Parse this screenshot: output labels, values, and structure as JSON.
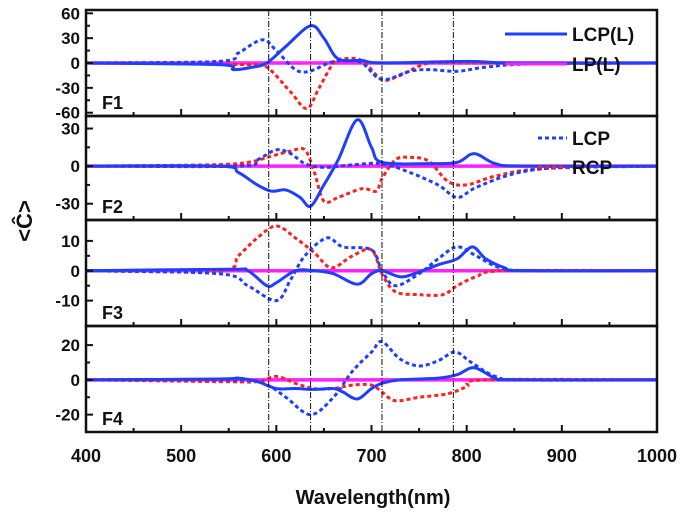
{
  "chart_data": {
    "type": "line",
    "xlabel": "Wavelength(nm)",
    "ylabel": "<Ĉ>",
    "xlim": [
      400,
      1000
    ],
    "xticks": [
      400,
      500,
      600,
      700,
      800,
      900,
      1000
    ],
    "grid": false,
    "reference_lines_x": [
      592,
      636,
      711,
      786
    ],
    "colors": {
      "LCP(L)": "#1f3fff",
      "LP(L)": "#ff1fff",
      "LCP": "#1f3fff",
      "RCP": "#ff2020"
    },
    "legend": [
      {
        "panel": 0,
        "placement": "top-right",
        "entries": [
          {
            "name": "LCP(L)",
            "style": "solid",
            "color": "#1f3fff"
          },
          {
            "name": "LP(L)",
            "style": "solid",
            "color": "#ff1fff"
          }
        ]
      },
      {
        "panel": 1,
        "placement": "top-right",
        "entries": [
          {
            "name": "LCP",
            "style": "dotted",
            "color": "#1f3fff"
          },
          {
            "name": "RCP",
            "style": "dotted",
            "color": "#ff2020"
          }
        ]
      }
    ],
    "panels": [
      {
        "label": "F1",
        "ylim": [
          -64,
          64
        ],
        "yticks": [
          60,
          30,
          0,
          -30,
          -60
        ],
        "series": [
          {
            "name": "LCP(L)",
            "points": [
              [
                400,
                0
              ],
              [
                540,
                -2
              ],
              [
                555,
                -8
              ],
              [
                575,
                -5
              ],
              [
                590,
                0
              ],
              [
                610,
                20
              ],
              [
                636,
                45
              ],
              [
                650,
                30
              ],
              [
                665,
                5
              ],
              [
                690,
                3
              ],
              [
                711,
                0
              ],
              [
                800,
                2
              ],
              [
                850,
                0
              ],
              [
                1000,
                0
              ]
            ]
          },
          {
            "name": "LCP",
            "points": [
              [
                400,
                0
              ],
              [
                540,
                2
              ],
              [
                560,
                12
              ],
              [
                585,
                28
              ],
              [
                600,
                15
              ],
              [
                620,
                -8
              ],
              [
                635,
                -10
              ],
              [
                655,
                0
              ],
              [
                670,
                3
              ],
              [
                690,
                0
              ],
              [
                711,
                -20
              ],
              [
                740,
                -10
              ],
              [
                760,
                -8
              ],
              [
                790,
                -10
              ],
              [
                820,
                -5
              ],
              [
                870,
                -1
              ],
              [
                1000,
                0
              ]
            ]
          },
          {
            "name": "RCP",
            "points": [
              [
                400,
                0
              ],
              [
                570,
                -2
              ],
              [
                590,
                -5
              ],
              [
                615,
                -35
              ],
              [
                632,
                -55
              ],
              [
                645,
                -30
              ],
              [
                660,
                0
              ],
              [
                670,
                5
              ],
              [
                690,
                3
              ],
              [
                711,
                -20
              ],
              [
                730,
                -15
              ],
              [
                760,
                0
              ],
              [
                800,
                0
              ],
              [
                1000,
                0
              ]
            ]
          },
          {
            "name": "LP(L)",
            "points": [
              [
                400,
                0
              ],
              [
                1000,
                0
              ]
            ]
          }
        ]
      },
      {
        "label": "F2",
        "ylim": [
          -43,
          40
        ],
        "yticks": [
          30,
          0,
          -30
        ],
        "series": [
          {
            "name": "LCP(L)",
            "points": [
              [
                400,
                0
              ],
              [
                540,
                0
              ],
              [
                560,
                -5
              ],
              [
                580,
                -15
              ],
              [
                595,
                -20
              ],
              [
                610,
                -19
              ],
              [
                625,
                -25
              ],
              [
                636,
                -32
              ],
              [
                650,
                -15
              ],
              [
                665,
                5
              ],
              [
                685,
                37
              ],
              [
                700,
                15
              ],
              [
                711,
                3
              ],
              [
                760,
                2
              ],
              [
                790,
                3
              ],
              [
                808,
                10
              ],
              [
                830,
                2
              ],
              [
                860,
                0
              ],
              [
                1000,
                0
              ]
            ]
          },
          {
            "name": "LCP",
            "points": [
              [
                400,
                0
              ],
              [
                560,
                0
              ],
              [
                580,
                5
              ],
              [
                600,
                13
              ],
              [
                615,
                10
              ],
              [
                630,
                2
              ],
              [
                650,
                -1
              ],
              [
                680,
                1
              ],
              [
                711,
                2
              ],
              [
                740,
                -5
              ],
              [
                770,
                -15
              ],
              [
                790,
                -25
              ],
              [
                810,
                -17
              ],
              [
                850,
                -6
              ],
              [
                900,
                -1
              ],
              [
                1000,
                0
              ]
            ]
          },
          {
            "name": "RCP",
            "points": [
              [
                400,
                0
              ],
              [
                530,
                1
              ],
              [
                570,
                3
              ],
              [
                595,
                8
              ],
              [
                615,
                12
              ],
              [
                630,
                13
              ],
              [
                640,
                -5
              ],
              [
                650,
                -28
              ],
              [
                665,
                -25
              ],
              [
                690,
                -18
              ],
              [
                705,
                -20
              ],
              [
                711,
                -10
              ],
              [
                725,
                5
              ],
              [
                740,
                7
              ],
              [
                760,
                4
              ],
              [
                780,
                -12
              ],
              [
                800,
                -15
              ],
              [
                830,
                -8
              ],
              [
                880,
                -2
              ],
              [
                1000,
                0
              ]
            ]
          },
          {
            "name": "LP(L)",
            "points": [
              [
                400,
                0
              ],
              [
                1000,
                0
              ]
            ]
          }
        ]
      },
      {
        "label": "F3",
        "ylim": [
          -18.5,
          17
        ],
        "yticks": [
          10,
          0,
          -10
        ],
        "series": [
          {
            "name": "LCP(L)",
            "points": [
              [
                400,
                0
              ],
              [
                550,
                0.5
              ],
              [
                570,
                0
              ],
              [
                590,
                -5
              ],
              [
                600,
                -4
              ],
              [
                620,
                0
              ],
              [
                640,
                0
              ],
              [
                660,
                -1
              ],
              [
                685,
                -4.5
              ],
              [
                700,
                -1
              ],
              [
                711,
                0
              ],
              [
                730,
                -2
              ],
              [
                745,
                -1
              ],
              [
                770,
                2
              ],
              [
                790,
                4
              ],
              [
                806,
                8
              ],
              [
                820,
                4
              ],
              [
                840,
                1
              ],
              [
                860,
                0
              ],
              [
                1000,
                0
              ]
            ]
          },
          {
            "name": "LCP",
            "points": [
              [
                400,
                0
              ],
              [
                540,
                -1
              ],
              [
                570,
                -5
              ],
              [
                600,
                -10
              ],
              [
                615,
                -3
              ],
              [
                630,
                5
              ],
              [
                653,
                11
              ],
              [
                670,
                8
              ],
              [
                700,
                7
              ],
              [
                711,
                0
              ],
              [
                725,
                -5
              ],
              [
                750,
                -1
              ],
              [
                770,
                4
              ],
              [
                790,
                8
              ],
              [
                810,
                5
              ],
              [
                835,
                1
              ],
              [
                870,
                0
              ],
              [
                1000,
                0
              ]
            ]
          },
          {
            "name": "RCP",
            "points": [
              [
                400,
                0
              ],
              [
                540,
                0
              ],
              [
                560,
                5
              ],
              [
                580,
                11
              ],
              [
                600,
                15
              ],
              [
                620,
                11
              ],
              [
                640,
                6
              ],
              [
                658,
                1
              ],
              [
                680,
                5
              ],
              [
                700,
                7
              ],
              [
                711,
                -1
              ],
              [
                725,
                -7
              ],
              [
                750,
                -8
              ],
              [
                775,
                -8
              ],
              [
                790,
                -5
              ],
              [
                810,
                -2
              ],
              [
                840,
                0
              ],
              [
                1000,
                0
              ]
            ]
          },
          {
            "name": "LP(L)",
            "points": [
              [
                400,
                0
              ],
              [
                1000,
                0
              ]
            ]
          }
        ]
      },
      {
        "label": "F4",
        "ylim": [
          -30,
          31
        ],
        "yticks": [
          20,
          0,
          -20
        ],
        "series": [
          {
            "name": "LCP(L)",
            "points": [
              [
                400,
                0
              ],
              [
                540,
                0.5
              ],
              [
                560,
                1
              ],
              [
                580,
                -1
              ],
              [
                600,
                -5
              ],
              [
                620,
                -5
              ],
              [
                640,
                -5.5
              ],
              [
                660,
                -5
              ],
              [
                670,
                -7
              ],
              [
                685,
                -11
              ],
              [
                700,
                -5
              ],
              [
                711,
                -2
              ],
              [
                730,
                0
              ],
              [
                770,
                1
              ],
              [
                790,
                3
              ],
              [
                808,
                7
              ],
              [
                830,
                1
              ],
              [
                850,
                0
              ],
              [
                1000,
                0
              ]
            ]
          },
          {
            "name": "LCP",
            "points": [
              [
                400,
                0
              ],
              [
                560,
                0
              ],
              [
                590,
                -3
              ],
              [
                610,
                -10
              ],
              [
                636,
                -20
              ],
              [
                660,
                -10
              ],
              [
                680,
                5
              ],
              [
                700,
                16
              ],
              [
                711,
                22
              ],
              [
                730,
                12
              ],
              [
                750,
                8
              ],
              [
                770,
                11
              ],
              [
                788,
                16
              ],
              [
                805,
                10
              ],
              [
                830,
                2
              ],
              [
                860,
                0
              ],
              [
                1000,
                0
              ]
            ]
          },
          {
            "name": "RCP",
            "points": [
              [
                400,
                0
              ],
              [
                540,
                -1
              ],
              [
                580,
                -1
              ],
              [
                600,
                2
              ],
              [
                620,
                -2
              ],
              [
                640,
                -5
              ],
              [
                660,
                -5
              ],
              [
                680,
                -3
              ],
              [
                700,
                -3
              ],
              [
                711,
                -7
              ],
              [
                725,
                -12
              ],
              [
                750,
                -10
              ],
              [
                780,
                -8
              ],
              [
                800,
                -4
              ],
              [
                820,
                0
              ],
              [
                1000,
                0
              ]
            ]
          },
          {
            "name": "LP(L)",
            "points": [
              [
                400,
                0
              ],
              [
                1000,
                0
              ]
            ]
          }
        ]
      }
    ]
  }
}
